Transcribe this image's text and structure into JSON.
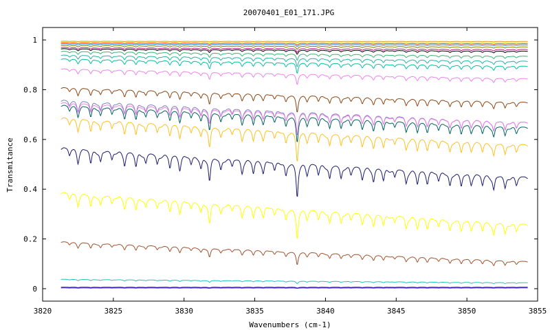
{
  "chart_data": {
    "type": "line",
    "title": "20070401_E01_171.JPG",
    "xlabel": "Wavenumbers (cm-1)",
    "ylabel": "Transmitance",
    "xlim": [
      3820,
      3855
    ],
    "ylim": [
      -0.05,
      1.05
    ],
    "x_start": 3821.3,
    "x_end": 3854.3,
    "grid": false,
    "legend": "none",
    "xticks": [
      3820,
      3825,
      3830,
      3835,
      3840,
      3845,
      3850,
      3855
    ],
    "yticks": [
      0,
      0.2,
      0.4,
      0.6,
      0.8,
      1
    ],
    "xtick_labels": [
      "3820",
      "3825",
      "3830",
      "3835",
      "3840",
      "3845",
      "3850",
      "3855"
    ],
    "ytick_labels": [
      "0",
      "0.2",
      "0.4",
      "0.6",
      "0.8",
      "1"
    ],
    "series": [
      {
        "color": "#2b2bff",
        "base": 0.003,
        "depth": 0.002,
        "slope": 0.0
      },
      {
        "color": "#4b0082",
        "base": 0.006,
        "depth": 0.004,
        "slope": 0.0
      },
      {
        "color": "#20c0c0",
        "base": 0.038,
        "depth": 0.012,
        "slope": -0.014
      },
      {
        "color": "#a0522d",
        "base": 0.19,
        "depth": 0.06,
        "slope": -0.08
      },
      {
        "color": "#ffff00",
        "base": 0.39,
        "depth": 0.14,
        "slope": -0.13
      },
      {
        "color": "#191970",
        "base": 0.57,
        "depth": 0.16,
        "slope": -0.12
      },
      {
        "color": "#ffc020",
        "base": 0.69,
        "depth": 0.14,
        "slope": -0.11
      },
      {
        "color": "#006060",
        "base": 0.74,
        "depth": 0.12,
        "slope": -0.09
      },
      {
        "color": "#8080c0",
        "base": 0.76,
        "depth": 0.11,
        "slope": -0.09
      },
      {
        "color": "#ee82ee",
        "base": 0.75,
        "depth": 0.1,
        "slope": -0.08
      },
      {
        "color": "#8b4513",
        "base": 0.81,
        "depth": 0.08,
        "slope": -0.06
      },
      {
        "color": "#ee82ee",
        "base": 0.885,
        "depth": 0.05,
        "slope": -0.04
      },
      {
        "color": "#00c0a0",
        "base": 0.925,
        "depth": 0.05,
        "slope": -0.03
      },
      {
        "color": "#20b2aa",
        "base": 0.94,
        "depth": 0.04,
        "slope": -0.025
      },
      {
        "color": "#3cb371",
        "base": 0.955,
        "depth": 0.03,
        "slope": -0.02
      },
      {
        "color": "#000000",
        "base": 0.965,
        "depth": 0.02,
        "slope": -0.01
      },
      {
        "color": "#c71585",
        "base": 0.97,
        "depth": 0.018,
        "slope": -0.008
      },
      {
        "color": "#808000",
        "base": 0.978,
        "depth": 0.014,
        "slope": -0.006
      },
      {
        "color": "#1e90ff",
        "base": 0.984,
        "depth": 0.01,
        "slope": -0.004
      },
      {
        "color": "#ff4500",
        "base": 0.988,
        "depth": 0.008,
        "slope": -0.003
      },
      {
        "color": "#adff2f",
        "base": 0.992,
        "depth": 0.006,
        "slope": -0.002
      },
      {
        "color": "#daa520",
        "base": 0.995,
        "depth": 0.004,
        "slope": -0.001
      }
    ]
  }
}
